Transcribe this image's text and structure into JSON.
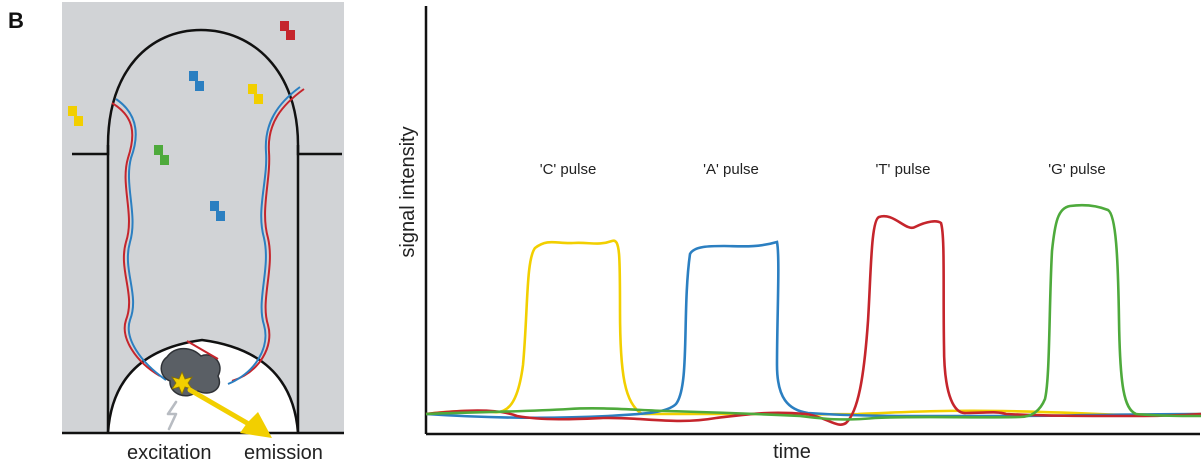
{
  "figure": {
    "panel_label": "B",
    "left": {
      "excitation_label": "excitation",
      "emission_label": "emission"
    },
    "right": {
      "ylabel": "signal intensity",
      "xlabel": "time",
      "pulses": [
        {
          "label": "'C' pulse",
          "color": "#f2cf00"
        },
        {
          "label": "'A' pulse",
          "color": "#2b7fc1"
        },
        {
          "label": "'T' pulse",
          "color": "#c5252c"
        },
        {
          "label": "'G' pulse",
          "color": "#4eaa3c"
        }
      ]
    }
  }
}
